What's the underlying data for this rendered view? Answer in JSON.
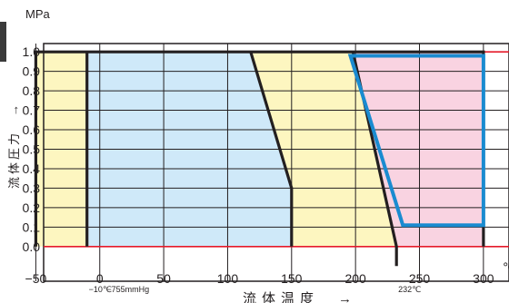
{
  "chart_data": {
    "type": "area",
    "title": "",
    "x_unit": "℃",
    "y_unit": "MPa",
    "xlabel": "流体温度　→",
    "ylabel": "流体圧力　→",
    "xlim": [
      -78,
      320
    ],
    "ylim": [
      -0.15,
      1.08
    ],
    "x_ticks": [
      -50,
      0,
      50,
      100,
      150,
      200,
      250,
      300
    ],
    "y_ticks": [
      0.0,
      0.1,
      0.2,
      0.3,
      0.4,
      0.5,
      0.6,
      0.7,
      0.8,
      0.9,
      1.0
    ],
    "x_tick_labels": [
      "−50",
      "0",
      "50",
      "100",
      "150",
      "200",
      "250",
      "300"
    ],
    "y_tick_labels": [
      "0.0",
      "0.1",
      "0.2",
      "0.3",
      "0.4",
      "0.5",
      "0.6",
      "0.7",
      "0.8",
      "0.9",
      "1.0"
    ],
    "grid": true,
    "annotations": [
      {
        "text": "−10℃",
        "x": -10
      },
      {
        "text": "−755mmHg",
        "x": 4
      },
      {
        "text": "232℃",
        "x": 232
      }
    ],
    "regions": [
      {
        "name": "yellow-left",
        "color": "#fdf6c0",
        "points": [
          [
            -50,
            0.0
          ],
          [
            -10,
            0.0
          ],
          [
            -10,
            1.0
          ],
          [
            -50,
            1.0
          ]
        ]
      },
      {
        "name": "blue",
        "color": "#cfe9f9",
        "points": [
          [
            -10,
            0.0
          ],
          [
            150,
            0.0
          ],
          [
            150,
            0.3
          ],
          [
            118,
            1.0
          ],
          [
            -10,
            1.0
          ]
        ]
      },
      {
        "name": "yellow-right",
        "color": "#fdf6c0",
        "points": [
          [
            150,
            0.0
          ],
          [
            232,
            0.0
          ],
          [
            198,
            1.0
          ],
          [
            118,
            1.0
          ],
          [
            150,
            0.3
          ]
        ]
      },
      {
        "name": "pink",
        "color": "#f9d3e1",
        "points": [
          [
            232,
            0.0
          ],
          [
            300,
            0.0
          ],
          [
            300,
            1.0
          ],
          [
            198,
            1.0
          ]
        ]
      }
    ],
    "boundary_lines": [
      [
        [
          -50,
          0.0
        ],
        [
          -50,
          1.0
        ],
        [
          300,
          1.0
        ],
        [
          300,
          0.0
        ]
      ],
      [
        [
          -10,
          0.0
        ],
        [
          -10,
          1.0
        ]
      ],
      [
        [
          150,
          0.0
        ],
        [
          150,
          0.3
        ],
        [
          118,
          1.0
        ]
      ],
      [
        [
          232,
          -0.1
        ],
        [
          232,
          0.0
        ],
        [
          198,
          1.0
        ]
      ]
    ],
    "highlight": {
      "color": "#1a8bd0",
      "points": [
        [
          196,
          0.98
        ],
        [
          300,
          0.98
        ],
        [
          300,
          0.11
        ],
        [
          237,
          0.11
        ]
      ]
    },
    "limit_lines": {
      "color": "#e51a2a",
      "y": [
        1.0,
        0.0
      ]
    }
  }
}
